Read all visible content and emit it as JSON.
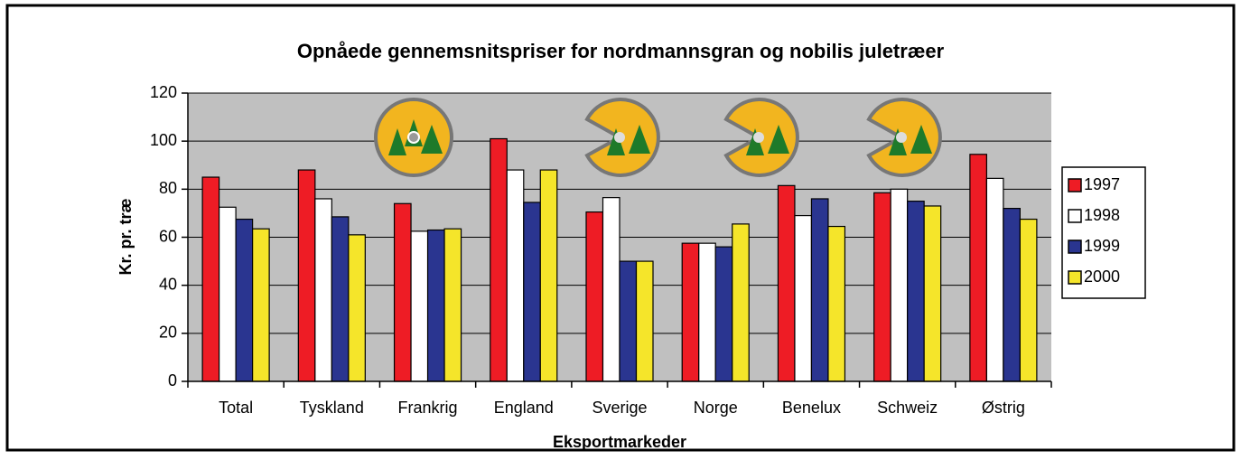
{
  "chart_data": {
    "type": "bar",
    "title": "Opnåede gennemsnitspriser for nordmannsgran og nobilis juletræer",
    "x_label": "Eksportmarkeder",
    "y_label": "Kr. pr. træ",
    "categories": [
      "Total",
      "Tyskland",
      "Frankrig",
      "England",
      "Sverige",
      "Norge",
      "Benelux",
      "Schweiz",
      "Østrig"
    ],
    "series": [
      {
        "name": "1997",
        "color": "#ee1c25",
        "values": [
          85,
          88,
          74,
          101,
          70.5,
          57.5,
          81.5,
          78.5,
          94.5
        ]
      },
      {
        "name": "1998",
        "color": "#ffffff",
        "values": [
          72.5,
          76,
          62.5,
          88,
          76.5,
          57.5,
          69,
          80,
          84.5
        ]
      },
      {
        "name": "1999",
        "color": "#2a3590",
        "values": [
          67.5,
          68.5,
          63,
          74.5,
          50,
          56,
          76,
          75,
          72
        ]
      },
      {
        "name": "2000",
        "color": "#f5e52a",
        "values": [
          63.5,
          61,
          63.5,
          88,
          50,
          65.5,
          64.5,
          73,
          67.5
        ]
      }
    ],
    "ylim": [
      0,
      120
    ],
    "yticks": [
      0,
      20,
      40,
      60,
      80,
      100,
      120
    ],
    "grid": true,
    "legend": "right"
  }
}
